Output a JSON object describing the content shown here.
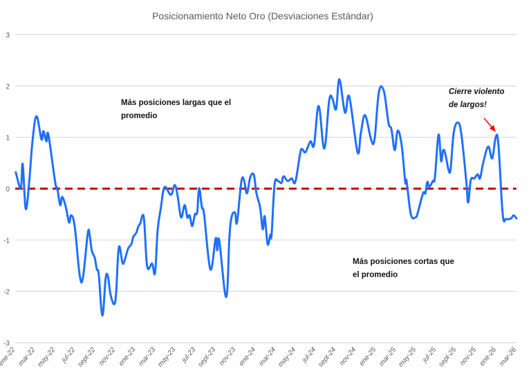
{
  "chart_data": {
    "type": "line",
    "title": "Posicionamiento Neto Oro (Desviaciones Estándar)",
    "xlabel": "",
    "ylabel": "",
    "ylim": [
      -3,
      3
    ],
    "yticks": [
      "3",
      "2",
      "1",
      "0",
      "-1",
      "-2",
      "-3"
    ],
    "xlim": [
      "2022-01-01",
      "2026-03-10"
    ],
    "xtick_labels": [
      "ene-22",
      "mar-22",
      "may-22",
      "jul-22",
      "sept-22",
      "nov-22",
      "ene-23",
      "mar-23",
      "may-23",
      "jul-23",
      "sept-23",
      "nov-23",
      "ene-24",
      "mar-24",
      "may-24",
      "jul-24",
      "sept-24",
      "nov-24",
      "ene-25",
      "mar-25",
      "may-25",
      "jul-25",
      "sept-25",
      "nov-25",
      "ene-26",
      "mar-26"
    ],
    "grid": "horizontal",
    "legend": "none",
    "reference_line": {
      "y": 0,
      "style": "dashed",
      "color": "#C00000"
    },
    "series_color": "#1F6FFF",
    "annotations": [
      {
        "lines": [
          "Más posiciones largas que el",
          "promedio"
        ],
        "style": "bold"
      },
      {
        "lines": [
          "Más posiciones cortas que",
          "el promedio"
        ],
        "style": "bold"
      },
      {
        "lines": [
          "Cierre violento",
          "de largos!"
        ],
        "style": "bold-italic",
        "arrow_color": "#FF0000"
      }
    ],
    "series": [
      {
        "x": [
          "2022-01-09",
          "2022-01-24",
          "2022-01-30",
          "2022-02-08",
          "2022-02-18",
          "2022-03-01",
          "2022-03-13",
          "2022-03-28",
          "2022-04-03",
          "2022-04-12",
          "2022-04-18",
          "2022-05-09",
          "2022-05-15",
          "2022-05-24",
          "2022-05-30",
          "2022-06-10",
          "2022-06-20",
          "2022-06-26",
          "2022-07-07",
          "2022-07-22",
          "2022-08-01",
          "2022-08-16",
          "2022-08-22",
          "2022-08-28",
          "2022-09-06",
          "2022-09-12",
          "2022-09-18",
          "2022-09-29",
          "2022-10-09",
          "2022-10-16",
          "2022-10-24",
          "2022-11-04",
          "2022-11-10",
          "2022-11-18",
          "2022-11-29",
          "2022-12-05",
          "2022-12-16",
          "2022-12-26",
          "2023-01-01",
          "2023-01-10",
          "2023-01-16",
          "2023-01-22",
          "2023-02-02",
          "2023-02-12",
          "2023-02-27",
          "2023-03-08",
          "2023-03-16",
          "2023-03-26",
          "2023-04-06",
          "2023-04-25",
          "2023-05-07",
          "2023-05-16",
          "2023-05-26",
          "2023-06-06",
          "2023-06-14",
          "2023-06-21",
          "2023-06-29",
          "2023-07-07",
          "2023-07-14",
          "2023-07-20",
          "2023-07-28",
          "2023-08-04",
          "2023-08-23",
          "2023-09-08",
          "2023-09-13",
          "2023-09-19",
          "2023-10-10",
          "2023-10-20",
          "2023-10-27",
          "2023-11-06",
          "2023-11-12",
          "2023-11-25",
          "2023-12-03",
          "2023-12-12",
          "2023-12-22",
          "2024-01-02",
          "2024-01-10",
          "2024-01-21",
          "2024-01-29",
          "2024-02-04",
          "2024-02-13",
          "2024-02-21",
          "2024-02-25",
          "2024-03-05",
          "2024-03-15",
          "2024-03-26",
          "2024-04-01",
          "2024-04-14",
          "2024-04-26",
          "2024-05-07",
          "2024-05-22",
          "2024-05-28",
          "2024-06-07",
          "2024-06-22",
          "2024-07-03",
          "2024-07-17",
          "2024-08-03",
          "2024-08-18",
          "2024-08-28",
          "2024-09-08",
          "2024-09-18",
          "2024-10-05",
          "2024-10-18",
          "2024-11-12",
          "2024-11-22",
          "2024-12-05",
          "2024-12-24",
          "2025-01-03",
          "2025-01-16",
          "2025-01-31",
          "2025-02-14",
          "2025-02-23",
          "2025-03-05",
          "2025-03-14",
          "2025-03-26",
          "2025-04-06",
          "2025-04-10",
          "2025-04-23",
          "2025-05-07",
          "2025-05-14",
          "2025-05-30",
          "2025-06-06",
          "2025-06-12",
          "2025-06-18",
          "2025-06-29",
          "2025-07-05",
          "2025-07-16",
          "2025-07-24",
          "2025-07-30",
          "2025-08-06",
          "2025-08-16",
          "2025-08-22",
          "2025-08-31",
          "2025-09-12",
          "2025-09-23",
          "2025-10-08",
          "2025-10-14",
          "2025-10-22",
          "2025-11-02",
          "2025-11-12",
          "2025-11-19",
          "2025-11-29",
          "2025-12-14",
          "2025-12-26",
          "2026-01-06",
          "2026-01-14",
          "2026-01-27",
          "2026-02-06",
          "2026-02-21",
          "2026-03-01",
          "2026-03-10"
        ],
        "y": [
          0.32,
          0.01,
          0.48,
          -0.39,
          0.08,
          0.94,
          1.41,
          0.96,
          1.12,
          0.92,
          1.05,
          0.11,
          0.01,
          -0.32,
          -0.16,
          -0.36,
          -0.66,
          -0.52,
          -0.73,
          -1.68,
          -1.73,
          -0.86,
          -0.93,
          -1.21,
          -1.35,
          -1.57,
          -1.67,
          -2.47,
          -1.75,
          -1.71,
          -2.07,
          -2.25,
          -2.02,
          -1.14,
          -1.44,
          -1.41,
          -1.17,
          -1.08,
          -0.94,
          -0.86,
          -0.74,
          -0.68,
          -0.56,
          -1.51,
          -1.46,
          -1.64,
          -0.81,
          -0.36,
          0.03,
          -0.12,
          0.07,
          -0.16,
          -0.56,
          -0.32,
          -0.56,
          -0.52,
          -0.73,
          -0.5,
          -0.46,
          0.01,
          -0.36,
          -0.5,
          -1.57,
          -0.97,
          -1.2,
          -1.01,
          -2.11,
          -0.93,
          -0.54,
          -0.47,
          -0.66,
          0.13,
          0.17,
          -0.09,
          0.22,
          0.27,
          -0.09,
          -0.36,
          -0.79,
          -0.54,
          -1.08,
          -0.9,
          -0.9,
          0.08,
          0.15,
          0.11,
          0.24,
          0.15,
          0.2,
          0.13,
          0.69,
          0.77,
          0.71,
          0.92,
          0.85,
          1.61,
          0.78,
          1.72,
          1.75,
          1.55,
          2.13,
          1.48,
          1.79,
          0.71,
          1.08,
          1.43,
          0.94,
          0.98,
          1.88,
          1.9,
          1.28,
          1.16,
          0.75,
          1.13,
          0.85,
          0.13,
          0.15,
          -0.5,
          -0.56,
          -0.47,
          -0.09,
          -0.09,
          0.13,
          0.04,
          0.15,
          0.22,
          1.05,
          0.54,
          0.75,
          0.67,
          0.35,
          0.4,
          1.08,
          1.29,
          1.08,
          0.17,
          -0.27,
          0.17,
          0.2,
          0.28,
          0.2,
          0.51,
          0.82,
          0.59,
          1.01,
          0.85,
          -0.5,
          -0.59,
          -0.58,
          -0.52,
          -0.58
        ]
      }
    ]
  }
}
